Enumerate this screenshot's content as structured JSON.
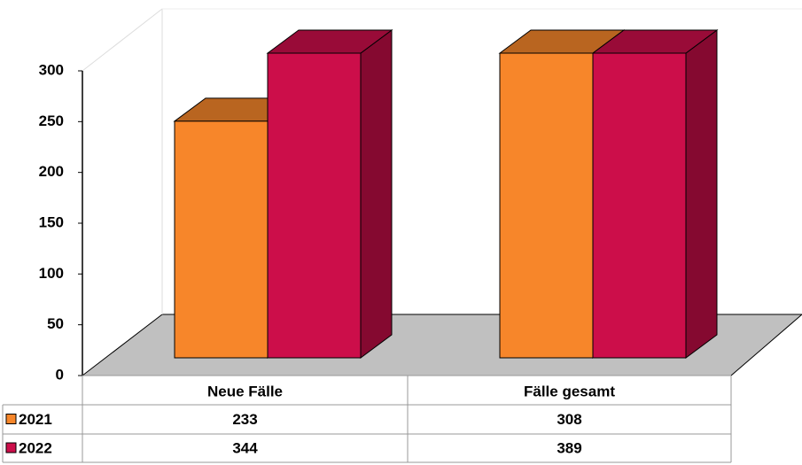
{
  "chart_data": {
    "type": "bar3d",
    "categories": [
      "Neue Fälle",
      "Fälle gesamt"
    ],
    "series": [
      {
        "name": "2021",
        "color": "#f7862a",
        "values": [
          233,
          308
        ]
      },
      {
        "name": "2022",
        "color": "#cc0e4a",
        "values": [
          344,
          389
        ]
      }
    ],
    "ylim": [
      0,
      300
    ],
    "yticks": [
      0,
      50,
      100,
      150,
      200,
      250,
      300
    ],
    "data_table": true
  }
}
